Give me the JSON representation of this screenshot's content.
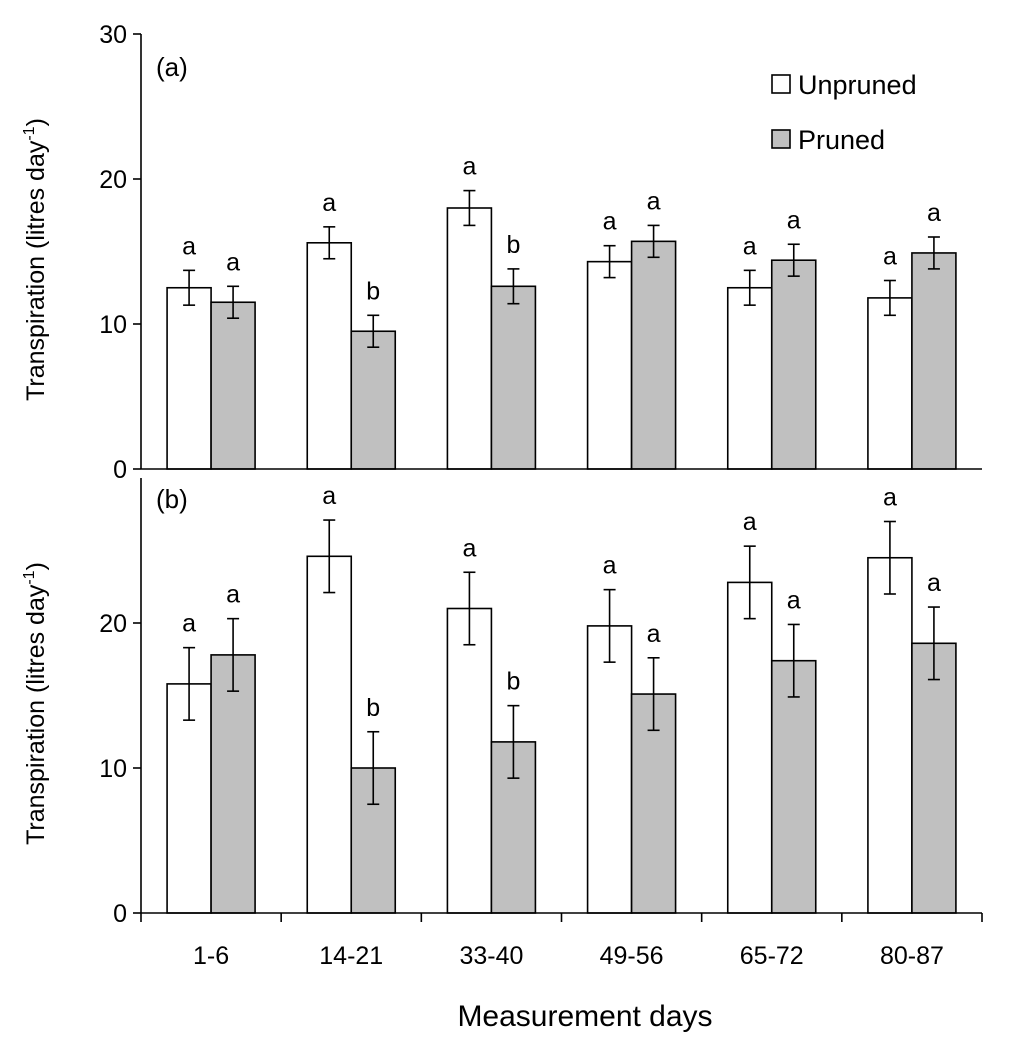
{
  "chart_data": {
    "type": "bar",
    "xlabel": "Measurement days",
    "categories": [
      "1-6",
      "14-21",
      "33-40",
      "49-56",
      "65-72",
      "80-87"
    ],
    "legend": {
      "position": "top-right",
      "entries": [
        {
          "name": "Unpruned",
          "color": "#ffffff"
        },
        {
          "name": "Pruned",
          "color": "#c0c0c0"
        }
      ]
    },
    "panels": [
      {
        "label": "(a)",
        "ylabel_main": "Transpiration (litres day",
        "ylabel_sup": "-1",
        "ylabel_close": ")",
        "ylim": [
          0,
          30
        ],
        "yticks": [
          "0",
          "10",
          "20",
          "30"
        ],
        "yticks_values": [
          0,
          10,
          20,
          30
        ],
        "series": [
          {
            "name": "Unpruned",
            "values": [
              12.5,
              15.6,
              18.0,
              14.3,
              12.5,
              11.8
            ],
            "errors": [
              1.2,
              1.1,
              1.2,
              1.1,
              1.2,
              1.2
            ],
            "letters": [
              "a",
              "a",
              "a",
              "a",
              "a",
              "a"
            ]
          },
          {
            "name": "Pruned",
            "values": [
              11.5,
              9.5,
              12.6,
              15.7,
              14.4,
              14.9
            ],
            "errors": [
              1.1,
              1.1,
              1.2,
              1.1,
              1.1,
              1.1
            ],
            "letters": [
              "a",
              "b",
              "b",
              "a",
              "a",
              "a"
            ]
          }
        ]
      },
      {
        "label": "(b)",
        "ylabel_main": "Transpiration (litres day",
        "ylabel_sup": "-1",
        "ylabel_close": ")",
        "ylim": [
          0,
          30
        ],
        "yticks": [
          "0",
          "10",
          "20"
        ],
        "yticks_values": [
          0,
          10,
          20
        ],
        "series": [
          {
            "name": "Unpruned",
            "values": [
              15.8,
              24.6,
              21.0,
              19.8,
              22.8,
              24.5
            ],
            "errors": [
              2.5,
              2.5,
              2.5,
              2.5,
              2.5,
              2.5
            ],
            "letters": [
              "a",
              "a",
              "a",
              "a",
              "a",
              "a"
            ]
          },
          {
            "name": "Pruned",
            "values": [
              17.8,
              10.0,
              11.8,
              15.1,
              17.4,
              18.6
            ],
            "errors": [
              2.5,
              2.5,
              2.5,
              2.5,
              2.5,
              2.5
            ],
            "letters": [
              "a",
              "b",
              "b",
              "a",
              "a",
              "a"
            ]
          }
        ]
      }
    ]
  }
}
